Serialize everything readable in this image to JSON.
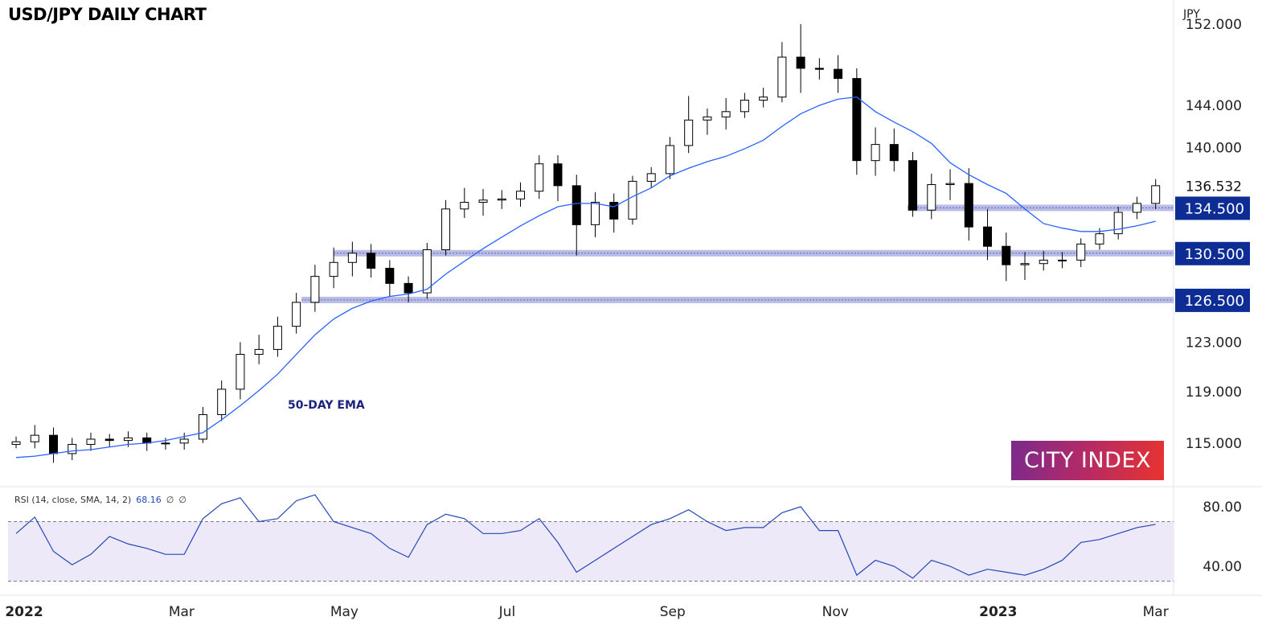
{
  "chart_data": {
    "type": "candlestick",
    "title": "USD/JPY DAILY CHART",
    "y_unit": "JPY",
    "y_scale": "log",
    "ylim": [
      111,
      153
    ],
    "y_ticks": [
      "152.000",
      "144.000",
      "140.000",
      "123.000",
      "119.000",
      "115.000"
    ],
    "last_price": "136.532",
    "x_ticks": [
      {
        "label": "2022",
        "date": "2022-01-01"
      },
      {
        "label": "Mar",
        "date": "2022-03-01"
      },
      {
        "label": "May",
        "date": "2022-05-01"
      },
      {
        "label": "Jul",
        "date": "2022-07-01"
      },
      {
        "label": "Sep",
        "date": "2022-09-01"
      },
      {
        "label": "Nov",
        "date": "2022-11-01"
      },
      {
        "label": "2023",
        "date": "2023-01-01"
      },
      {
        "label": "Mar",
        "date": "2023-03-01"
      }
    ],
    "first_week": "2021-12-27",
    "close": [
      115.1,
      115.6,
      114.2,
      114.9,
      115.3,
      115.2,
      115.4,
      115.0,
      115.0,
      115.3,
      117.2,
      119.2,
      122.0,
      122.4,
      124.3,
      126.3,
      128.5,
      129.7,
      130.5,
      129.2,
      127.9,
      127.1,
      130.8,
      134.4,
      135.0,
      135.2,
      135.3,
      136.0,
      138.5,
      136.5,
      133.0,
      135.0,
      133.5,
      136.9,
      137.6,
      140.2,
      142.6,
      142.9,
      143.4,
      144.5,
      144.8,
      148.7,
      147.6,
      147.5,
      146.6,
      138.8,
      140.3,
      138.8,
      134.3,
      136.6,
      136.7,
      132.8,
      131.1,
      129.5,
      129.6,
      129.9,
      129.9,
      131.3,
      132.2,
      134.1,
      134.9,
      136.5
    ],
    "high_extra": [
      0.4,
      0.8,
      0.6,
      0.5,
      0.5,
      0.4,
      0.5,
      0.4,
      0.4,
      0.5,
      0.6,
      0.7,
      1.0,
      1.2,
      0.8,
      0.8,
      1.0,
      1.3,
      1.0,
      0.8,
      0.7,
      0.6,
      0.6,
      0.8,
      1.3,
      1.0,
      0.8,
      0.8,
      0.8,
      0.8,
      1.0,
      0.9,
      0.8,
      0.5,
      0.6,
      0.8,
      2.3,
      0.8,
      1.3,
      0.7,
      0.9,
      1.5,
      3.3,
      1.0,
      1.4,
      1.0,
      1.6,
      1.5,
      0.8,
      1.0,
      1.3,
      1.4,
      1.6,
      1.2,
      1.0,
      0.8,
      0.7,
      0.5,
      0.5,
      0.5,
      0.6,
      0.6
    ],
    "low_extra": [
      0.3,
      0.5,
      0.7,
      0.5,
      0.5,
      0.5,
      0.5,
      0.6,
      0.5,
      0.5,
      0.3,
      0.5,
      0.8,
      0.8,
      0.6,
      0.6,
      0.8,
      1.0,
      1.2,
      0.8,
      1.1,
      0.8,
      0.5,
      0.5,
      0.8,
      1.2,
      0.8,
      0.7,
      0.7,
      1.4,
      2.7,
      1.1,
      1.2,
      0.5,
      0.6,
      0.5,
      0.7,
      1.4,
      1.2,
      0.6,
      0.7,
      0.5,
      2.4,
      1.0,
      1.4,
      1.3,
      1.4,
      1.0,
      0.6,
      0.8,
      1.4,
      1.2,
      1.2,
      1.4,
      1.3,
      0.6,
      0.7,
      0.6,
      0.5,
      0.5,
      0.6,
      0.5
    ],
    "series": [
      {
        "name": "50-DAY EMA",
        "color": "#2962ff",
        "values": [
          113.9,
          114.0,
          114.2,
          114.4,
          114.5,
          114.7,
          114.9,
          115.0,
          115.2,
          115.5,
          115.8,
          116.8,
          117.9,
          119.1,
          120.4,
          122.0,
          123.6,
          124.9,
          125.8,
          126.4,
          126.8,
          127.0,
          127.4,
          128.7,
          129.8,
          130.9,
          131.9,
          132.9,
          133.8,
          134.6,
          134.9,
          134.9,
          134.6,
          135.5,
          136.3,
          137.4,
          138.1,
          138.7,
          139.2,
          139.9,
          140.7,
          142.0,
          143.2,
          144.0,
          144.6,
          144.8,
          143.4,
          142.4,
          141.5,
          140.4,
          138.6,
          137.5,
          136.6,
          135.8,
          134.4,
          133.1,
          132.7,
          132.4,
          132.4,
          132.6,
          132.9,
          133.3
        ]
      }
    ],
    "levels": [
      {
        "value": 134.5,
        "label": "134.500",
        "from": "2022-11-28"
      },
      {
        "value": 130.5,
        "label": "130.500",
        "from": "2022-04-27"
      },
      {
        "value": 126.5,
        "label": "126.500",
        "from": "2022-04-15"
      }
    ],
    "level_color": "#0d2c94",
    "rsi": {
      "legend": "RSI (14, close, SMA, 14, 2)",
      "value": "68.16",
      "extra1": "∅",
      "extra2": "∅",
      "ticks": [
        "80.00",
        "40.00"
      ],
      "bands": [
        30,
        70
      ],
      "ylim": [
        20,
        95
      ],
      "values": [
        62,
        73,
        50,
        41,
        48,
        60,
        55,
        52,
        48,
        48,
        72,
        82,
        86,
        70,
        72,
        84,
        88,
        70,
        66,
        62,
        52,
        46,
        68,
        75,
        72,
        62,
        62,
        64,
        72,
        56,
        36,
        44,
        52,
        60,
        68,
        72,
        78,
        70,
        64,
        66,
        66,
        76,
        80,
        64,
        64,
        34,
        44,
        40,
        32,
        44,
        40,
        34,
        38,
        36,
        34,
        38,
        44,
        56,
        58,
        62,
        66,
        68.16
      ]
    }
  },
  "branding": {
    "logo_text": "CITY INDEX",
    "ema_label": "50-DAY EMA"
  }
}
